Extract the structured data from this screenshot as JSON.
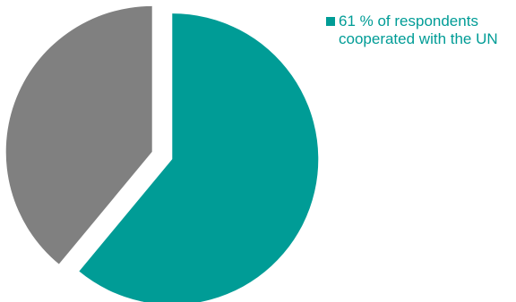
{
  "chart_data": {
    "type": "pie",
    "slices": [
      {
        "label": "61 % of respondents cooperated with the UN",
        "value": 61,
        "color": "#009c96",
        "exploded": true
      },
      {
        "label": "",
        "value": 39,
        "color": "#808080",
        "exploded": true
      }
    ],
    "legend": {
      "placement": "top-right",
      "entries": [
        "61 % of respondents cooperated with the UN"
      ]
    }
  }
}
